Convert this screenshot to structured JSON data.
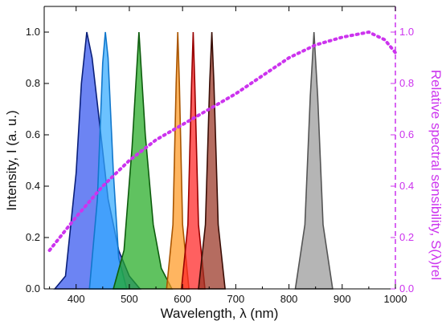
{
  "chart_data": {
    "type": "area",
    "title": "",
    "xlabel": "Wavelength, λ (nm)",
    "ylabel_left": "Intensity, I (a. u.)",
    "ylabel_right": "Relative spectral sensibility, S(λ)rel",
    "xlim": [
      340,
      1000
    ],
    "ylim_left": [
      0,
      1.1
    ],
    "ylim_right": [
      0,
      1.1
    ],
    "x_ticks": [
      400,
      500,
      600,
      700,
      800,
      900,
      1000
    ],
    "y_ticks": [
      0.0,
      0.2,
      0.4,
      0.6,
      0.8,
      1.0
    ],
    "y_ticks_right": [
      0.0,
      0.2,
      0.4,
      0.6,
      0.8,
      1.0
    ],
    "right_axis_color": "#cc33ee",
    "series": [
      {
        "peak": 420,
        "fwhm": 50,
        "fill": "#3355ee",
        "stroke": "#0a1f7a",
        "values_x": [
          360,
          380,
          400,
          410,
          420,
          430,
          440,
          460,
          480,
          500,
          520
        ],
        "values_y": [
          0.0,
          0.05,
          0.45,
          0.8,
          1.0,
          0.9,
          0.72,
          0.35,
          0.15,
          0.05,
          0.0
        ]
      },
      {
        "peak": 455,
        "fwhm": 25,
        "fill": "#33aaff",
        "stroke": "#1177cc",
        "values_x": [
          425,
          440,
          450,
          455,
          460,
          470,
          480,
          495
        ],
        "values_y": [
          0.0,
          0.35,
          0.88,
          1.0,
          0.9,
          0.45,
          0.12,
          0.0
        ]
      },
      {
        "peak": 518,
        "fwhm": 33,
        "fill": "#22aa22",
        "stroke": "#0d5c0d",
        "values_x": [
          470,
          490,
          505,
          518,
          530,
          545,
          560,
          580
        ],
        "values_y": [
          0.0,
          0.15,
          0.55,
          1.0,
          0.6,
          0.25,
          0.08,
          0.0
        ]
      },
      {
        "peak": 591,
        "fwhm": 15,
        "fill": "#ff9922",
        "stroke": "#aa5500",
        "values_x": [
          570,
          582,
          588,
          591,
          594,
          600,
          612
        ],
        "values_y": [
          0.0,
          0.25,
          0.8,
          1.0,
          0.8,
          0.25,
          0.0
        ]
      },
      {
        "peak": 620,
        "fwhm": 15,
        "fill": "#ff2222",
        "stroke": "#990000",
        "values_x": [
          598,
          610,
          617,
          620,
          623,
          630,
          642
        ],
        "values_y": [
          0.0,
          0.25,
          0.8,
          1.0,
          0.8,
          0.25,
          0.0
        ]
      },
      {
        "peak": 655,
        "fwhm": 17,
        "fill": "#993322",
        "stroke": "#3a0d05",
        "values_x": [
          630,
          643,
          651,
          655,
          659,
          667,
          680
        ],
        "values_y": [
          0.0,
          0.25,
          0.8,
          1.0,
          0.8,
          0.25,
          0.0
        ]
      },
      {
        "peak": 847,
        "fwhm": 25,
        "fill": "#999999",
        "stroke": "#555555",
        "values_x": [
          812,
          830,
          840,
          847,
          854,
          864,
          882
        ],
        "values_y": [
          0.0,
          0.25,
          0.75,
          1.0,
          0.75,
          0.25,
          0.0
        ]
      }
    ],
    "sensitivity": {
      "color": "#cc33ee",
      "x": [
        350,
        400,
        450,
        500,
        550,
        600,
        650,
        700,
        750,
        800,
        850,
        900,
        950,
        980,
        1000
      ],
      "y": [
        0.15,
        0.28,
        0.4,
        0.5,
        0.58,
        0.64,
        0.7,
        0.76,
        0.83,
        0.9,
        0.95,
        0.98,
        1.0,
        0.97,
        0.92
      ]
    }
  }
}
